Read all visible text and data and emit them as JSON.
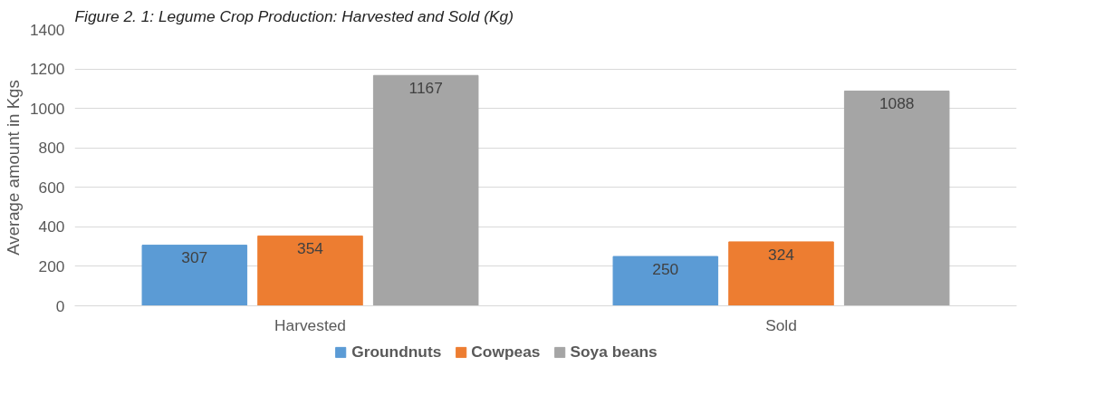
{
  "chart_data": {
    "type": "bar",
    "title": "Figure 2. 1: Legume Crop Production: Harvested and Sold (Kg)",
    "ylabel": "Average amount in Kgs",
    "categories": [
      "Harvested",
      "Sold"
    ],
    "series": [
      {
        "name": "Groundnuts",
        "color": "#5b9bd5",
        "values": [
          307,
          250
        ]
      },
      {
        "name": "Cowpeas",
        "color": "#ed7d31",
        "values": [
          354,
          324
        ]
      },
      {
        "name": "Soya beans",
        "color": "#a5a5a5",
        "values": [
          1167,
          1088
        ]
      }
    ],
    "ylim": [
      0,
      1400
    ],
    "yticks": [
      0,
      200,
      400,
      600,
      800,
      1000,
      1200,
      1400
    ],
    "grid": "y",
    "legend": "bottom",
    "data_labels": true
  }
}
